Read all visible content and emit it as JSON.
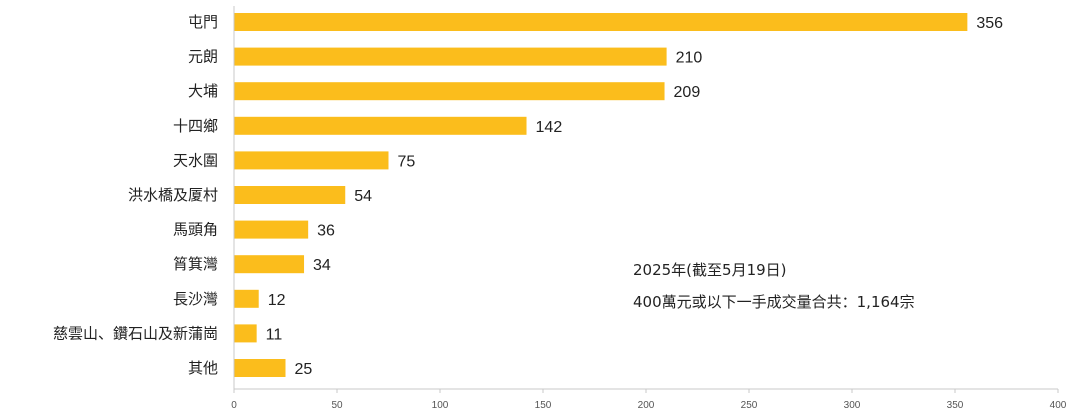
{
  "chart_data": {
    "type": "bar",
    "orientation": "horizontal",
    "categories": [
      "屯門",
      "元朗",
      "大埔",
      "十四鄉",
      "天水圍",
      "洪水橋及厦村",
      "馬頭角",
      "筲箕灣",
      "長沙灣",
      "慈雲山、鑽石山及新蒲崗",
      "其他"
    ],
    "values": [
      356,
      210,
      209,
      142,
      75,
      54,
      36,
      34,
      12,
      11,
      25
    ],
    "xlim": [
      0,
      400
    ],
    "x_ticks": [
      0,
      50,
      100,
      150,
      200,
      250,
      300,
      350,
      400
    ],
    "bar_color": "#FBBD1C",
    "grid": false,
    "annotations": [
      "2025年(截至5月19日)",
      "400萬元或以下一手成交量合共：1,164宗"
    ]
  }
}
